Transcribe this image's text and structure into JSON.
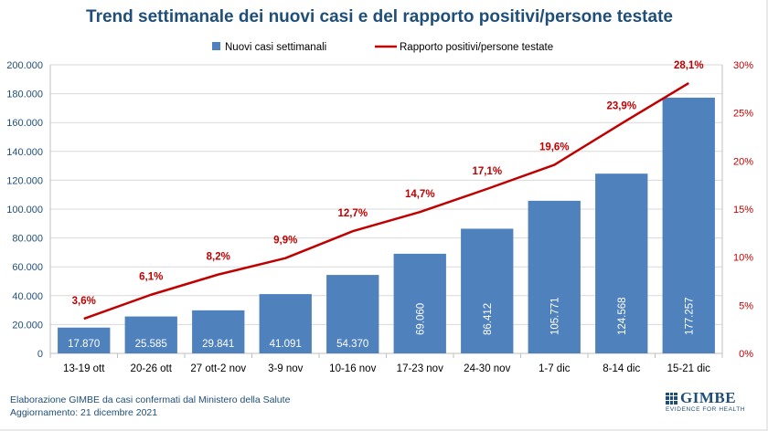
{
  "title": "Trend settimanale dei nuovi casi e del rapporto positivi/persone testate",
  "footer": {
    "line1": "Elaborazione GIMBE da casi confermati dal Ministero della Salute",
    "line2": "Aggiornamento: 21 dicembre 2021"
  },
  "logo": {
    "name": "GIMBE",
    "tagline": "EVIDENCE FOR HEALTH"
  },
  "chart_data": {
    "type": "bar",
    "categories": [
      "13-19 ott",
      "20-26 ott",
      "27 ott-2 nov",
      "3-9 nov",
      "10-16 nov",
      "17-23 nov",
      "24-30 nov",
      "1-7 dic",
      "8-14 dic",
      "15-21 dic"
    ],
    "series": [
      {
        "name": "Nuovi casi settimanali",
        "type": "bar",
        "axis": "left",
        "color": "#4f81bd",
        "values": [
          17870,
          25585,
          29841,
          41091,
          54370,
          69060,
          86412,
          105771,
          124568,
          177257
        ],
        "labels": [
          "17.870",
          "25.585",
          "29.841",
          "41.091",
          "54.370",
          "69.060",
          "86.412",
          "105.771",
          "124.568",
          "177.257"
        ]
      },
      {
        "name": "Rapporto positivi/persone testate",
        "type": "line",
        "axis": "right",
        "color": "#c00000",
        "values": [
          3.6,
          6.1,
          8.2,
          9.9,
          12.7,
          14.7,
          17.1,
          19.6,
          23.9,
          28.1
        ],
        "labels": [
          "3,6%",
          "6,1%",
          "8,2%",
          "9,9%",
          "12,7%",
          "14,7%",
          "17,1%",
          "19,6%",
          "23,9%",
          "28,1%"
        ]
      }
    ],
    "y_left": {
      "lim": [
        0,
        200000
      ],
      "ticks": [
        0,
        20000,
        40000,
        60000,
        80000,
        100000,
        120000,
        140000,
        160000,
        180000,
        200000
      ],
      "tick_labels": [
        "0",
        "20.000",
        "40.000",
        "60.000",
        "80.000",
        "100.000",
        "120.000",
        "140.000",
        "160.000",
        "180.000",
        "200.000"
      ],
      "color": "#1f4e79"
    },
    "y_right": {
      "lim": [
        0,
        30
      ],
      "ticks": [
        0,
        5,
        10,
        15,
        20,
        25,
        30
      ],
      "tick_labels": [
        "0%",
        "5%",
        "10%",
        "15%",
        "20%",
        "25%",
        "30%"
      ],
      "color": "#c00000"
    },
    "grid": true,
    "legend": "top"
  }
}
